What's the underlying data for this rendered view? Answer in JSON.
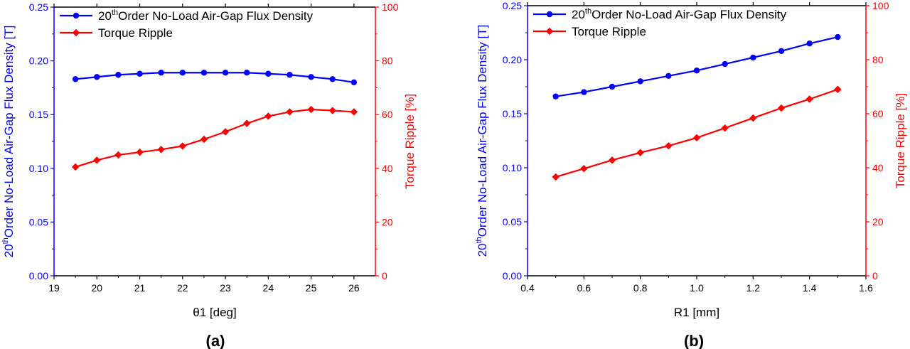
{
  "colors": {
    "left": "#0000ff",
    "right": "#ff0000",
    "frame": "#000000"
  },
  "chart_data": [
    {
      "type": "line",
      "panel_label": "(a)",
      "xlabel": "θ1 [deg]",
      "ylabel_left_prefix": "20",
      "ylabel_left_sup": "th",
      "ylabel_left_suffix": "Order No-Load Air-Gap Flux Density [T]",
      "ylabel_right": "Torque Ripple [%]",
      "xlim": [
        19,
        26.5
      ],
      "ylim_left": [
        0,
        0.25
      ],
      "ylim_right": [
        0,
        100
      ],
      "x_ticks": [
        19,
        20,
        21,
        22,
        23,
        24,
        25,
        26
      ],
      "x_tick_labels": [
        "19",
        "20",
        "21",
        "22",
        "23",
        "24",
        "25",
        "26"
      ],
      "y_left_ticks": [
        0,
        0.05,
        0.1,
        0.15,
        0.2,
        0.25
      ],
      "y_left_tick_labels": [
        "0.00",
        "0.05",
        "0.10",
        "0.15",
        "0.20",
        "0.25"
      ],
      "y_right_ticks": [
        0,
        20,
        40,
        60,
        80,
        100
      ],
      "y_right_tick_labels": [
        "0",
        "20",
        "40",
        "60",
        "80",
        "100"
      ],
      "legend": "top-left",
      "grid": false,
      "x": [
        19.5,
        20,
        20.5,
        21,
        21.5,
        22,
        22.5,
        23,
        23.5,
        24,
        24.5,
        25,
        25.5,
        26
      ],
      "series": [
        {
          "name_prefix": "20",
          "name_sup": "th",
          "name_suffix": "Order No-Load Air-Gap Flux Density",
          "axis": "left",
          "marker": "circle",
          "values": [
            0.183,
            0.185,
            0.187,
            0.188,
            0.189,
            0.189,
            0.189,
            0.189,
            0.189,
            0.188,
            0.187,
            0.185,
            0.183,
            0.18
          ]
        },
        {
          "name": "Torque Ripple",
          "axis": "right",
          "marker": "diamond",
          "values": [
            40.5,
            43.0,
            45.0,
            46.0,
            47.0,
            48.3,
            50.8,
            53.6,
            56.7,
            59.4,
            61.0,
            61.9,
            61.5,
            61.0
          ]
        }
      ]
    },
    {
      "type": "line",
      "panel_label": "(b)",
      "xlabel": "R1 [mm]",
      "ylabel_left_prefix": "20",
      "ylabel_left_sup": "th",
      "ylabel_left_suffix": "Order No-Load Air-Gap Flux Density [T]",
      "ylabel_right": "Torque Ripple [%]",
      "xlim": [
        0.4,
        1.6
      ],
      "ylim_left": [
        0,
        0.25
      ],
      "ylim_right": [
        0,
        100
      ],
      "x_ticks": [
        0.4,
        0.6,
        0.8,
        1.0,
        1.2,
        1.4,
        1.6
      ],
      "x_tick_labels": [
        "0.4",
        "0.6",
        "0.8",
        "1.0",
        "1.2",
        "1.4",
        "1.6"
      ],
      "y_left_ticks": [
        0,
        0.05,
        0.1,
        0.15,
        0.2,
        0.25
      ],
      "y_left_tick_labels": [
        "0.00",
        "0.05",
        "0.10",
        "0.15",
        "0.20",
        "0.25"
      ],
      "y_right_ticks": [
        0,
        20,
        40,
        60,
        80,
        100
      ],
      "y_right_tick_labels": [
        "0",
        "20",
        "40",
        "60",
        "80",
        "100"
      ],
      "legend": "top-left",
      "grid": false,
      "x": [
        0.5,
        0.6,
        0.7,
        0.8,
        0.9,
        1.0,
        1.1,
        1.2,
        1.3,
        1.4,
        1.5
      ],
      "series": [
        {
          "name_prefix": "20",
          "name_sup": "th",
          "name_suffix": "Order No-Load Air-Gap Flux Density",
          "axis": "left",
          "marker": "circle",
          "values": [
            0.166,
            0.17,
            0.175,
            0.18,
            0.185,
            0.19,
            0.196,
            0.202,
            0.208,
            0.215,
            0.221
          ]
        },
        {
          "name": "Torque Ripple",
          "axis": "right",
          "marker": "diamond",
          "values": [
            36.6,
            39.7,
            42.8,
            45.6,
            48.1,
            51.1,
            54.7,
            58.4,
            62.1,
            65.4,
            69.0
          ]
        }
      ]
    }
  ]
}
